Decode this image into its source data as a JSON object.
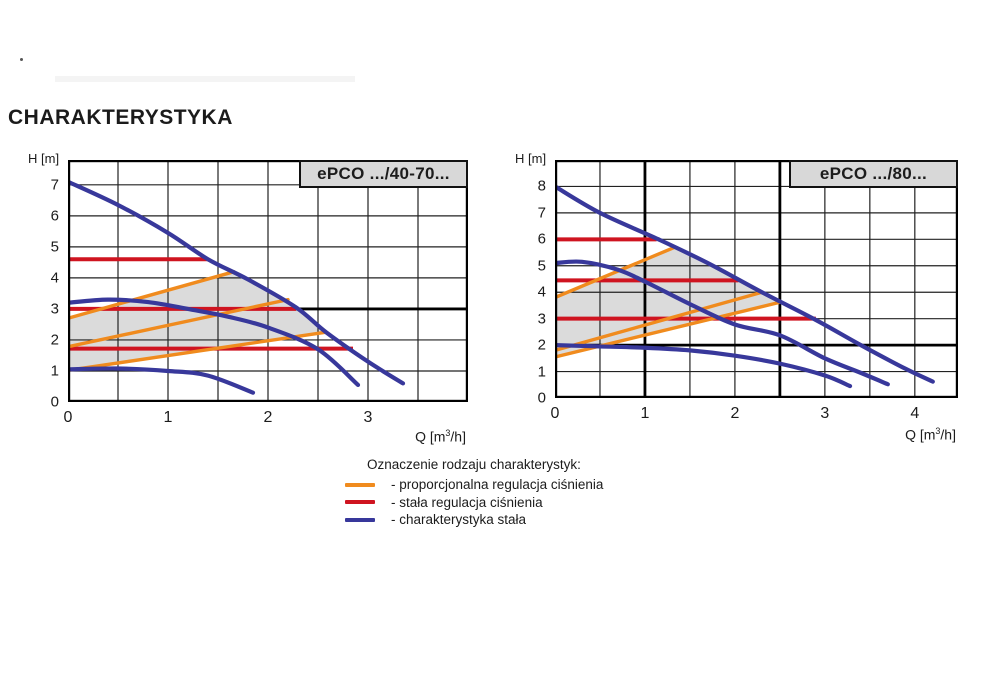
{
  "page": {
    "heading": "CHARAKTERYSTYKA"
  },
  "colors": {
    "blue": "#38389b",
    "red": "#cf1420",
    "orange": "#f08b1e",
    "grid": "#222222",
    "shade": "#dbdbdb",
    "box_bg": "#d8d8d8"
  },
  "legend": {
    "title": "Oznaczenie rodzaju charakterystyk:",
    "items": [
      {
        "name": "proportional-pressure-regulation",
        "color": "#f08b1e",
        "label": "- proporcjonalna regulacja ciśnienia"
      },
      {
        "name": "constant-pressure-regulation",
        "color": "#cf1420",
        "label": "- stała regulacja ciśnienia"
      },
      {
        "name": "constant-characteristic",
        "color": "#38389b",
        "label": "- charakterystyka stała"
      }
    ]
  },
  "chart_data": [
    {
      "type": "line",
      "title": "ePCO .../40-70...",
      "ylabel": "H [m]",
      "xlabel": "Q [m³/h]",
      "xlabel_prefix": "Q [m",
      "xlabel_sup": "3",
      "xlabel_suffix": "/h]",
      "xlim": [
        0,
        4.0
      ],
      "ylim": [
        0,
        7.8
      ],
      "xticks": [
        0,
        1,
        2,
        3
      ],
      "yticks": [
        0,
        1,
        2,
        3,
        4,
        5,
        6,
        7
      ],
      "grid_step_x": 0.5,
      "grid_step_y": 1,
      "grid": true,
      "legend_position": "below",
      "thick_h_lines": [
        3
      ],
      "thick_v_lines": [],
      "shaded_region": [
        [
          0,
          1.02
        ],
        [
          0,
          2.7
        ],
        [
          1.66,
          4.2
        ],
        [
          1.8,
          3.95
        ],
        [
          2.28,
          3.05
        ],
        [
          2.58,
          2.25
        ]
      ],
      "series": [
        {
          "name": "constant-characteristic-max",
          "kind": "curve",
          "color": "blue",
          "points": [
            [
              0,
              7.1
            ],
            [
              0.5,
              6.35
            ],
            [
              1.0,
              5.45
            ],
            [
              1.4,
              4.6
            ],
            [
              1.8,
              3.95
            ],
            [
              2.28,
              3.05
            ],
            [
              2.58,
              2.25
            ],
            [
              3.0,
              1.3
            ],
            [
              3.35,
              0.6
            ]
          ]
        },
        {
          "name": "constant-characteristic-mid",
          "kind": "curve",
          "color": "blue",
          "points": [
            [
              0,
              3.2
            ],
            [
              0.4,
              3.3
            ],
            [
              0.8,
              3.22
            ],
            [
              1.2,
              3.0
            ],
            [
              1.6,
              2.75
            ],
            [
              2.0,
              2.4
            ],
            [
              2.5,
              1.7
            ],
            [
              2.9,
              0.55
            ]
          ]
        },
        {
          "name": "constant-characteristic-min",
          "kind": "curve",
          "color": "blue",
          "points": [
            [
              0,
              1.05
            ],
            [
              0.5,
              1.08
            ],
            [
              1.0,
              1.0
            ],
            [
              1.4,
              0.85
            ],
            [
              1.85,
              0.3
            ]
          ]
        },
        {
          "name": "constant-pressure-line-1",
          "kind": "hline",
          "color": "red",
          "y": 4.6,
          "x0": 0,
          "x1": 1.4
        },
        {
          "name": "constant-pressure-line-2",
          "kind": "hline",
          "color": "red",
          "y": 3.0,
          "x0": 0,
          "x1": 2.28
        },
        {
          "name": "constant-pressure-line-3",
          "kind": "hline",
          "color": "red",
          "y": 1.72,
          "x0": 0,
          "x1": 2.85
        },
        {
          "name": "proportional-regulation-line-1",
          "kind": "segment",
          "color": "orange",
          "points": [
            [
              0,
              2.7
            ],
            [
              1.66,
              4.2
            ]
          ]
        },
        {
          "name": "proportional-regulation-line-2",
          "kind": "segment",
          "color": "orange",
          "points": [
            [
              0,
              1.78
            ],
            [
              2.2,
              3.3
            ]
          ]
        },
        {
          "name": "proportional-regulation-line-3",
          "kind": "segment",
          "color": "orange",
          "points": [
            [
              0,
              1.02
            ],
            [
              2.58,
              2.25
            ]
          ]
        }
      ]
    },
    {
      "type": "line",
      "title": "ePCO .../80...",
      "ylabel": "H [m]",
      "xlabel": "Q [m³/h]",
      "xlabel_prefix": "Q [m",
      "xlabel_sup": "3",
      "xlabel_suffix": "/h]",
      "xlim": [
        0,
        4.48
      ],
      "ylim": [
        0,
        9.0
      ],
      "xticks": [
        0,
        1,
        2,
        3,
        4
      ],
      "yticks": [
        0,
        1,
        2,
        3,
        4,
        5,
        6,
        7,
        8
      ],
      "grid_step_x": 0.5,
      "grid_step_y": 1,
      "grid": true,
      "legend_position": "below",
      "thick_h_lines": [
        2
      ],
      "thick_v_lines": [
        1,
        2.5
      ],
      "shaded_region": [
        [
          0,
          1.55
        ],
        [
          0,
          3.8
        ],
        [
          1.33,
          5.7
        ],
        [
          1.7,
          5.1
        ],
        [
          2.3,
          4.0
        ],
        [
          2.5,
          3.62
        ]
      ],
      "series": [
        {
          "name": "constant-characteristic-max",
          "kind": "curve",
          "color": "blue",
          "points": [
            [
              0,
              8.0
            ],
            [
              0.5,
              7.0
            ],
            [
              1.15,
              6.0
            ],
            [
              1.7,
              5.1
            ],
            [
              2.3,
              4.0
            ],
            [
              2.9,
              2.95
            ],
            [
              3.4,
              2.0
            ],
            [
              3.9,
              1.1
            ],
            [
              4.2,
              0.62
            ]
          ]
        },
        {
          "name": "constant-characteristic-mid",
          "kind": "curve",
          "color": "blue",
          "points": [
            [
              0,
              5.1
            ],
            [
              0.3,
              5.15
            ],
            [
              0.7,
              4.85
            ],
            [
              1.0,
              4.4
            ],
            [
              1.5,
              3.55
            ],
            [
              2.0,
              2.78
            ],
            [
              2.5,
              2.37
            ],
            [
              3.0,
              1.5
            ],
            [
              3.4,
              0.95
            ],
            [
              3.7,
              0.52
            ]
          ]
        },
        {
          "name": "constant-characteristic-min",
          "kind": "curve",
          "color": "blue",
          "points": [
            [
              0,
              2.0
            ],
            [
              0.5,
              1.95
            ],
            [
              1.0,
              1.9
            ],
            [
              1.5,
              1.8
            ],
            [
              2.0,
              1.6
            ],
            [
              2.5,
              1.3
            ],
            [
              3.0,
              0.85
            ],
            [
              3.28,
              0.45
            ]
          ]
        },
        {
          "name": "constant-pressure-line-1",
          "kind": "hline",
          "color": "red",
          "y": 6.0,
          "x0": 0,
          "x1": 1.13
        },
        {
          "name": "constant-pressure-line-2",
          "kind": "hline",
          "color": "red",
          "y": 4.45,
          "x0": 0,
          "x1": 2.04
        },
        {
          "name": "constant-pressure-line-3",
          "kind": "hline",
          "color": "red",
          "y": 3.0,
          "x0": 0,
          "x1": 2.9
        },
        {
          "name": "proportional-regulation-line-1",
          "kind": "segment",
          "color": "orange",
          "points": [
            [
              0,
              3.8
            ],
            [
              1.33,
              5.7
            ]
          ]
        },
        {
          "name": "proportional-regulation-line-2",
          "kind": "segment",
          "color": "orange",
          "points": [
            [
              0,
              1.8
            ],
            [
              2.3,
              4.0
            ]
          ]
        },
        {
          "name": "proportional-regulation-line-3",
          "kind": "segment",
          "color": "orange",
          "points": [
            [
              0,
              1.55
            ],
            [
              2.5,
              3.62
            ]
          ]
        }
      ]
    }
  ]
}
